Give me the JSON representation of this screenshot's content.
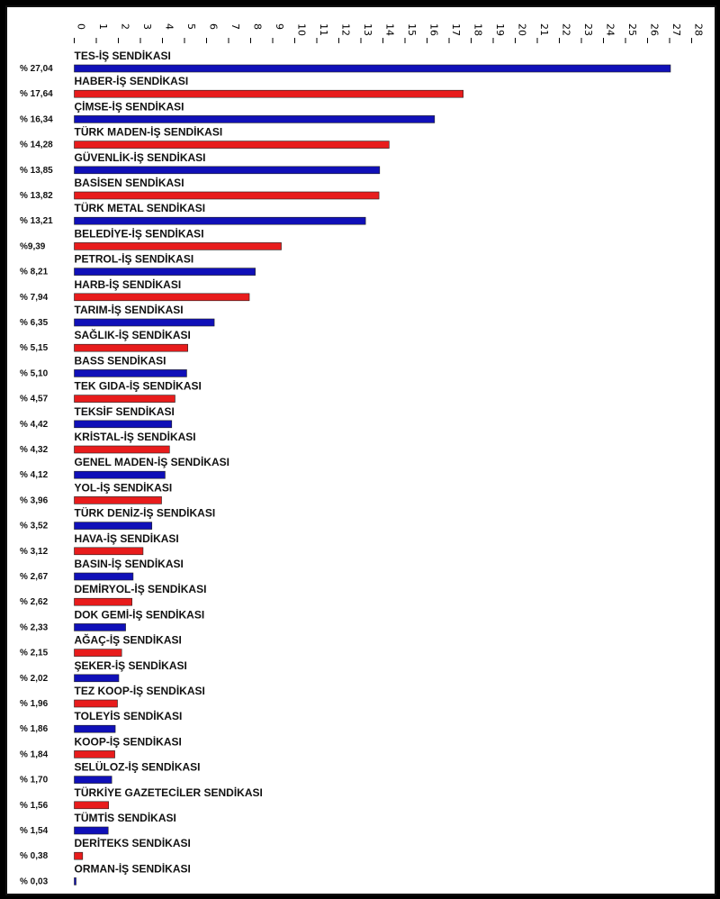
{
  "chart_data": {
    "type": "bar",
    "orientation": "horizontal",
    "xlim": [
      0,
      28
    ],
    "x_ticks": [
      "0",
      "1",
      "2",
      "3",
      "4",
      "5",
      "6",
      "7",
      "8",
      "9",
      "10",
      "11",
      "12",
      "13",
      "14",
      "15",
      "16",
      "17",
      "18",
      "19",
      "20",
      "21",
      "22",
      "23",
      "24",
      "25",
      "26",
      "27",
      "28"
    ],
    "grid": false,
    "colors": [
      "#1010b8",
      "#e81c1c"
    ],
    "categories": [
      "TES-İŞ SENDİKASI",
      "HABER-İŞ SENDİKASI",
      "ÇİMSE-İŞ SENDİKASI",
      "TÜRK MADEN-İŞ SENDİKASI",
      "GÜVENLİK-İŞ SENDİKASI",
      "BASİSEN SENDİKASI",
      "TÜRK METAL SENDİKASI",
      "BELEDİYE-İŞ SENDİKASI",
      "PETROL-İŞ SENDİKASI",
      "HARB-İŞ SENDİKASI",
      "TARIM-İŞ SENDİKASI",
      "SAĞLIK-İŞ SENDİKASI",
      "BASS SENDİKASI",
      "TEK GIDA-İŞ SENDİKASI",
      "TEKSİF SENDİKASI",
      "KRİSTAL-İŞ SENDİKASI",
      "GENEL MADEN-İŞ SENDİKASI",
      "YOL-İŞ SENDİKASI",
      "TÜRK DENİZ-İŞ SENDİKASI",
      "HAVA-İŞ SENDİKASI",
      "BASIN-İŞ SENDİKASI",
      "DEMİRYOL-İŞ SENDİKASI",
      "DOK GEMİ-İŞ SENDİKASI",
      "AĞAÇ-İŞ SENDİKASI",
      "ŞEKER-İŞ SENDİKASI",
      "TEZ KOOP-İŞ SENDİKASI",
      "TOLEYİS SENDİKASI",
      "KOOP-İŞ SENDİKASI",
      "SELÜLOZ-İŞ SENDİKASI",
      "TÜRKİYE GAZETECİLER SENDİKASI",
      "TÜMTİS SENDİKASI",
      "DERİTEKS SENDİKASI",
      "ORMAN-İŞ SENDİKASI"
    ],
    "values": [
      27.04,
      17.64,
      16.34,
      14.28,
      13.85,
      13.82,
      13.21,
      9.39,
      8.21,
      7.94,
      6.35,
      5.15,
      5.1,
      4.57,
      4.42,
      4.32,
      4.12,
      3.96,
      3.52,
      3.12,
      2.67,
      2.62,
      2.33,
      2.15,
      2.02,
      1.96,
      1.86,
      1.84,
      1.7,
      1.56,
      1.54,
      0.38,
      0.03
    ],
    "value_labels": [
      "% 27,04",
      "% 17,64",
      "% 16,34",
      "% 14,28",
      "% 13,85",
      "% 13,82",
      "% 13,21",
      "%9,39",
      "% 8,21",
      "% 7,94",
      "% 6,35",
      "% 5,15",
      "% 5,10",
      "% 4,57",
      "% 4,42",
      "% 4,32",
      "% 4,12",
      "% 3,96",
      "% 3,52",
      "% 3,12",
      "% 2,67",
      "% 2,62",
      "% 2,33",
      "% 2,15",
      "% 2,02",
      "% 1,96",
      "% 1,86",
      "% 1,84",
      "% 1,70",
      "% 1,56",
      "% 1,54",
      "% 0,38",
      "% 0,03"
    ]
  }
}
